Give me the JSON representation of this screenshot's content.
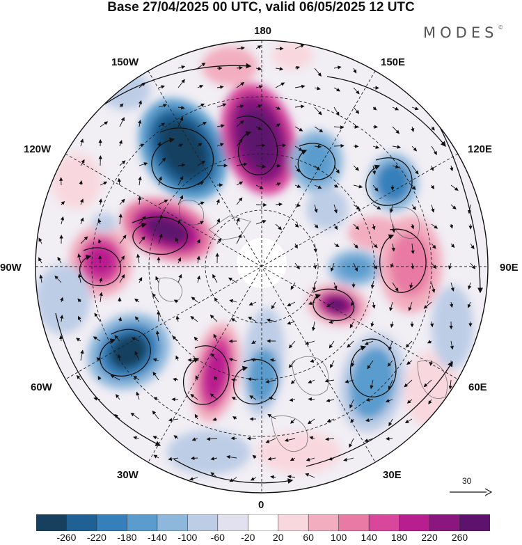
{
  "title": "Base 27/04/2025 00 UTC, valid 06/05/2025 12 UTC",
  "brand": "MODES",
  "brand_mark": "©",
  "meridian_labels": {
    "lon_180": "180",
    "lon_150w": "150W",
    "lon_150e": "150E",
    "lon_120w": "120W",
    "lon_120e": "120E",
    "lon_90w": "90W",
    "lon_90e": "90E",
    "lon_60w": "60W",
    "lon_60e": "60E",
    "lon_30w": "30W",
    "lon_30e": "30E",
    "lon_0": "0"
  },
  "vector_reference": {
    "label": "30"
  },
  "colorbar": {
    "ticks": [
      "-260",
      "-220",
      "-180",
      "-140",
      "-100",
      "-60",
      "-20",
      "20",
      "60",
      "100",
      "140",
      "180",
      "220",
      "260"
    ],
    "colors": [
      "#17405f",
      "#1f6095",
      "#3580bb",
      "#5a9ccd",
      "#8db8dc",
      "#bdcde6",
      "#e2e2ef",
      "#ffffff",
      "#f8d8de",
      "#f2aec0",
      "#e87aa3",
      "#d8479b",
      "#b81f8e",
      "#8a1680",
      "#5d126e"
    ]
  }
}
